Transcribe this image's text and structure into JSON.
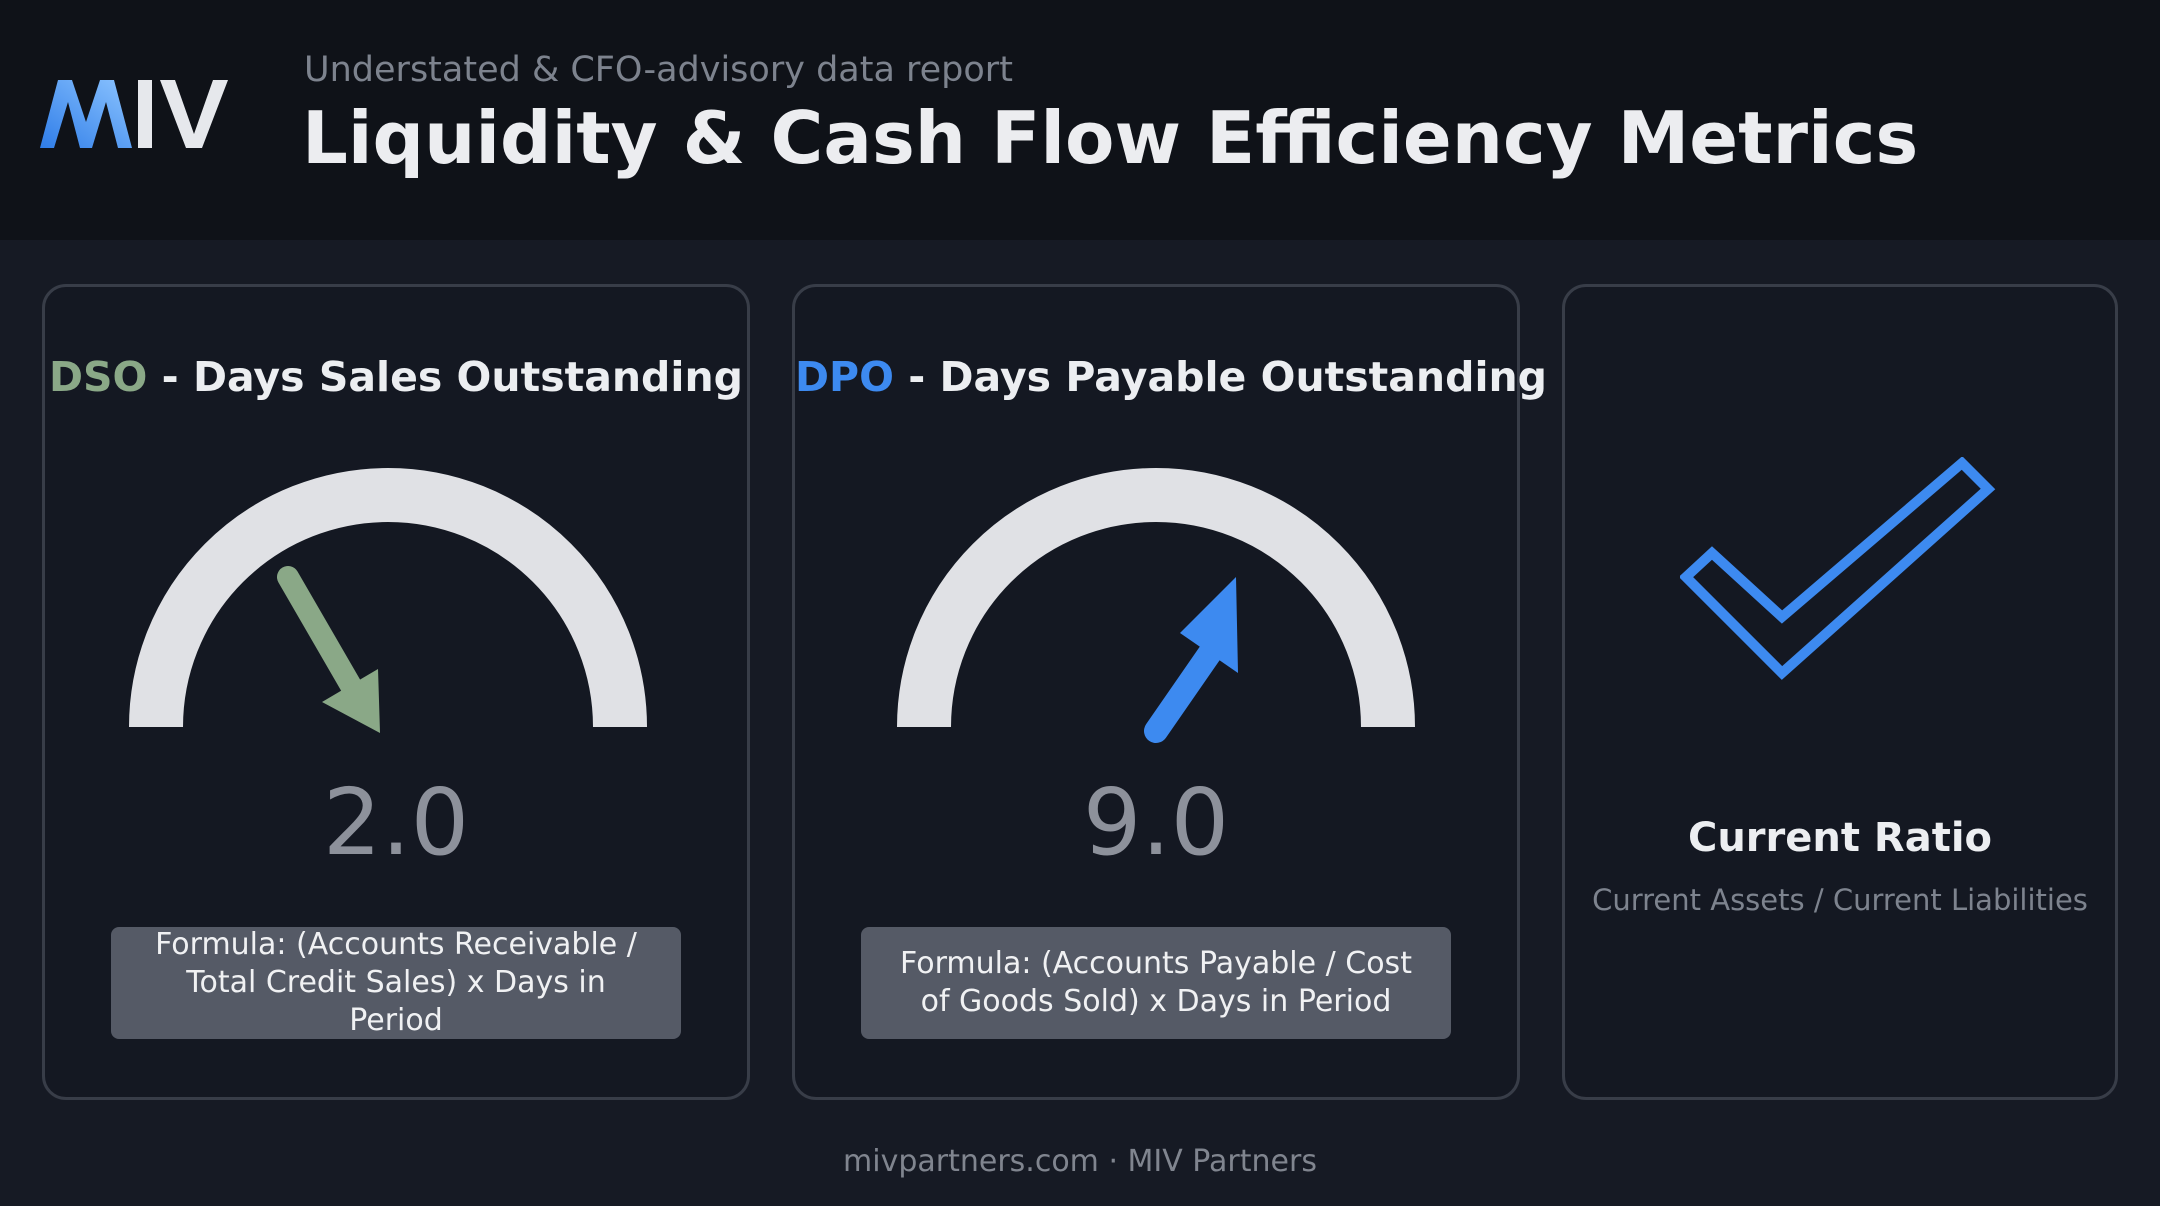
{
  "header": {
    "logo_text": "MIV",
    "subtitle": "Understated & CFO-advisory data report",
    "title": "Liquidity & Cash Flow Efficiency Metrics"
  },
  "cards": [
    {
      "abbr": "DSO",
      "separator": " - ",
      "name": "Days Sales Outstanding",
      "value": "2.0",
      "trend": "down",
      "accent": "#8aa887",
      "formula": "Formula: (Accounts Receivable / Total Credit Sales) x Days in Period"
    },
    {
      "abbr": "DPO",
      "separator": " - ",
      "name": "Days Payable Outstanding",
      "value": "9.0",
      "trend": "up",
      "accent": "#3d8af0",
      "formula": "Formula: (Accounts Payable / Cost of Goods Sold) x Days in Period"
    },
    {
      "icon": "checkmark-icon",
      "accent": "#3d8af0",
      "name": "Current Ratio",
      "formula": "Current Assets / Current Liabilities"
    }
  ],
  "footer": {
    "text": "mivpartners.com · MIV Partners"
  }
}
